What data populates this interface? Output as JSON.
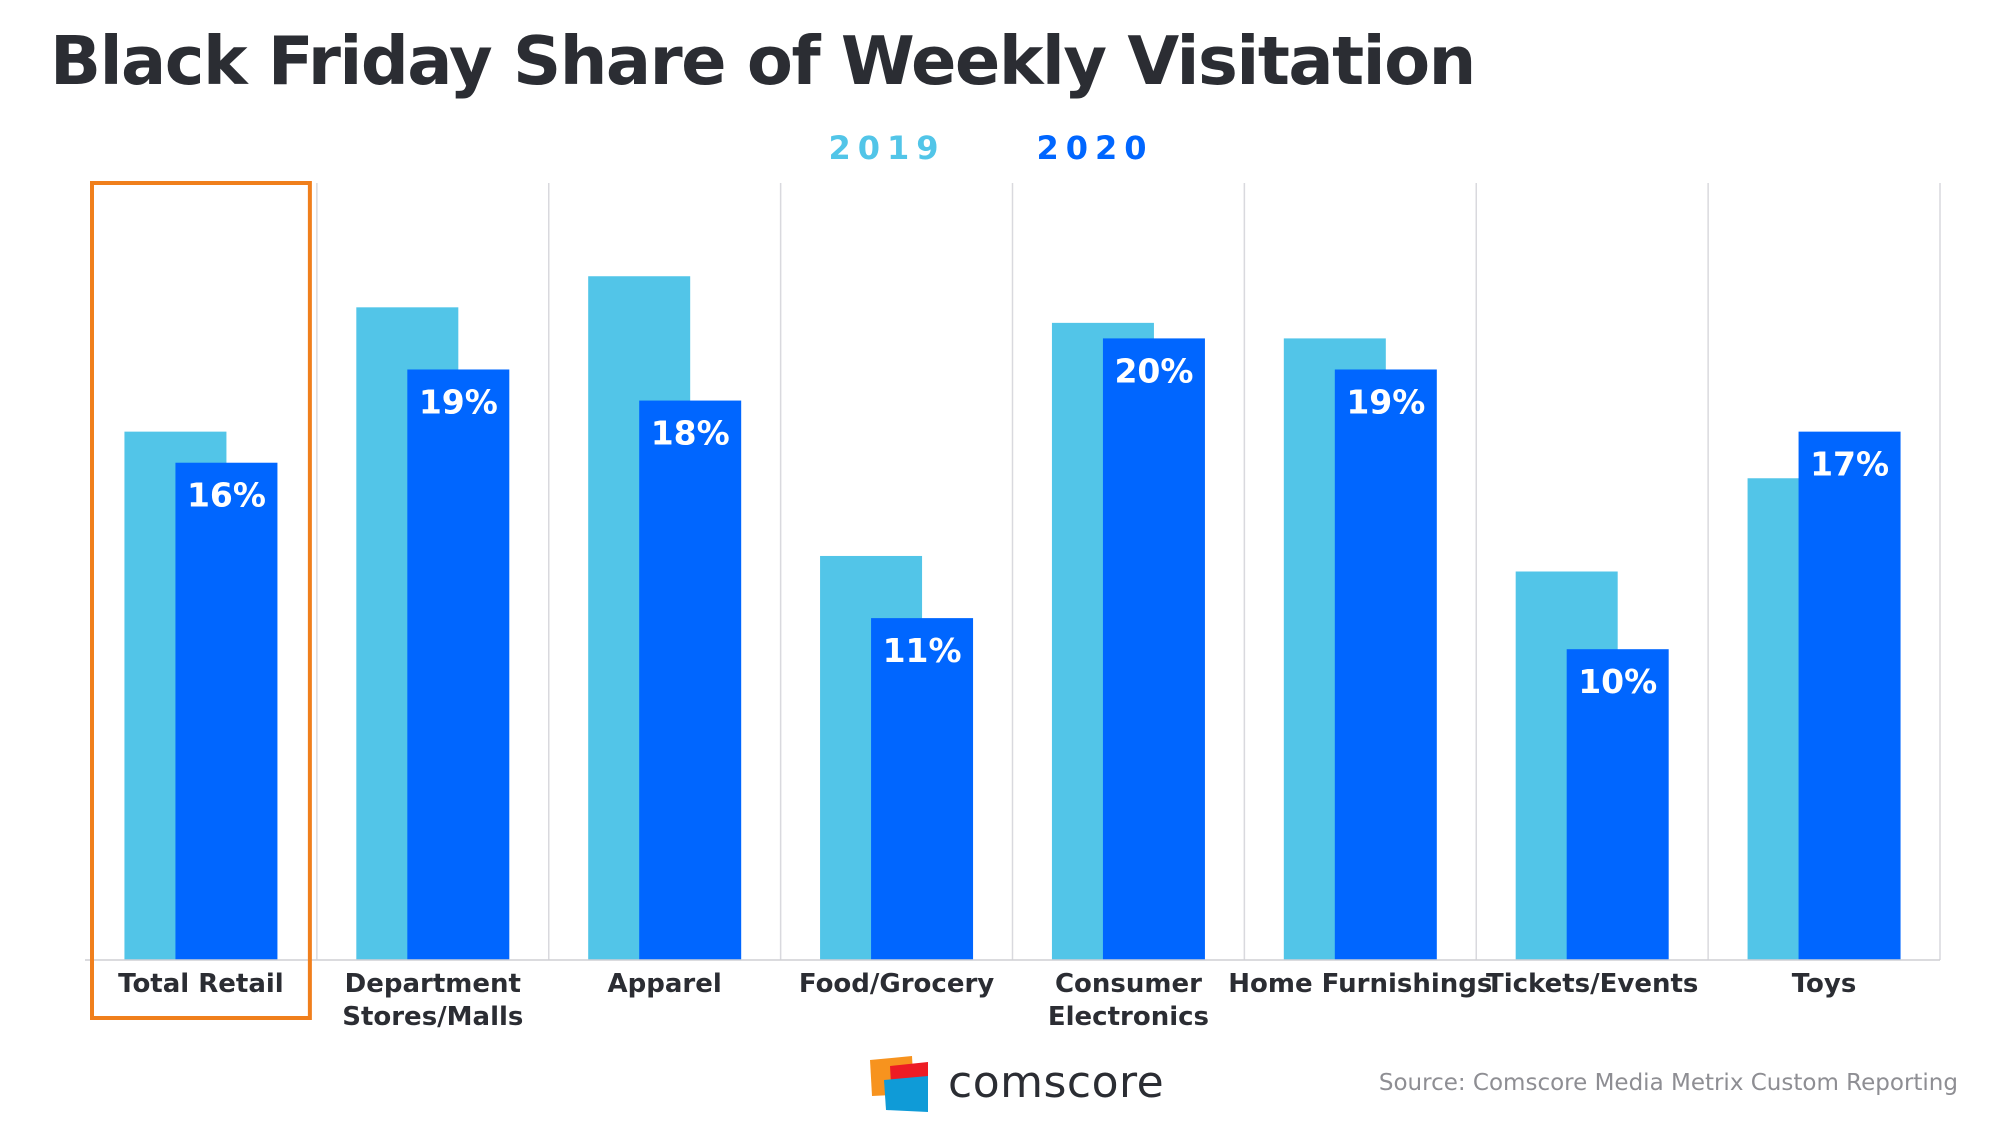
{
  "title": "Black Friday Share of Weekly Visitation",
  "chart_data": {
    "type": "bar",
    "title": "Black Friday Share of Weekly Visitation",
    "categories": [
      "Total Retail",
      "Department Stores/Malls",
      "Apparel",
      "Food/Grocery",
      "Consumer Electronics",
      "Home Furnishings",
      "Tickets/Events",
      "Toys"
    ],
    "category_lines": [
      [
        "Total Retail"
      ],
      [
        "Department",
        "Stores/Malls"
      ],
      [
        "Apparel"
      ],
      [
        "Food/Grocery"
      ],
      [
        "Consumer",
        "Electronics"
      ],
      [
        "Home Furnishings"
      ],
      [
        "Tickets/Events"
      ],
      [
        "Toys"
      ]
    ],
    "series": [
      {
        "name": "2019",
        "color": "#52c5e8",
        "values": [
          17,
          21,
          22,
          13,
          20.5,
          20,
          12.5,
          15.5
        ],
        "labels": []
      },
      {
        "name": "2020",
        "color": "#0066ff",
        "values": [
          16,
          19,
          18,
          11,
          20,
          19,
          10,
          17
        ],
        "labels": [
          "16%",
          "19%",
          "18%",
          "11%",
          "20%",
          "19%",
          "10%",
          "17%"
        ]
      }
    ],
    "highlighted_category": "Total Retail",
    "highlight_color": "#f07f1c",
    "ylim": [
      0,
      25
    ],
    "xlabel": "",
    "ylabel": "",
    "grid": false,
    "legend": "top-center"
  },
  "logo": {
    "text": "comscore",
    "colors": [
      "#f7931e",
      "#ed1c24",
      "#0f9bd7"
    ]
  },
  "source": "Source: Comscore Media Metrix Custom Reporting"
}
